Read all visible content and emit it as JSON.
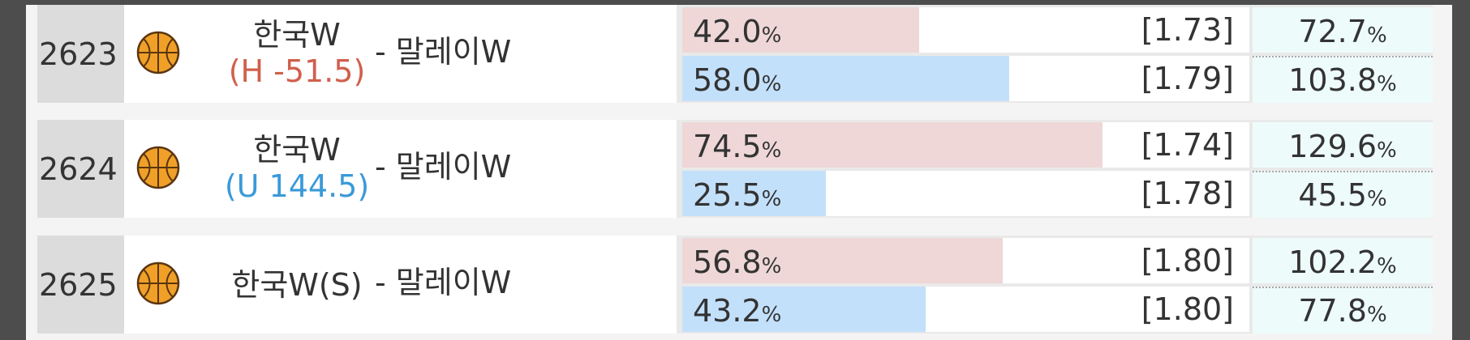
{
  "rows": [
    {
      "id": "2623",
      "home": "한국W",
      "handicap": "(H -51.5)",
      "handicap_color": "#d0604c",
      "away": "- 말레이W",
      "lines": [
        {
          "value": 42.0,
          "label": "42.0%",
          "odds": "[1.73]",
          "return": "72.7%"
        },
        {
          "value": 58.0,
          "label": "58.0%",
          "odds": "[1.79]",
          "return": "103.8%"
        }
      ]
    },
    {
      "id": "2624",
      "home": "한국W",
      "handicap": "(U 144.5)",
      "handicap_color": "#3a9ad9",
      "away": "- 말레이W",
      "lines": [
        {
          "value": 74.5,
          "label": "74.5%",
          "odds": "[1.74]",
          "return": "129.6%"
        },
        {
          "value": 25.5,
          "label": "25.5%",
          "odds": "[1.78]",
          "return": "45.5%"
        }
      ]
    },
    {
      "id": "2625",
      "home": "한국W(S)",
      "away": "- 말레이W",
      "lines": [
        {
          "value": 56.8,
          "label": "56.8%",
          "odds": "[1.80]",
          "return": "102.2%"
        },
        {
          "value": 43.2,
          "label": "43.2%",
          "odds": "[1.80]",
          "return": "77.8%"
        }
      ]
    }
  ],
  "bar_colors": [
    "#efd7d7",
    "#c3e0fb"
  ]
}
